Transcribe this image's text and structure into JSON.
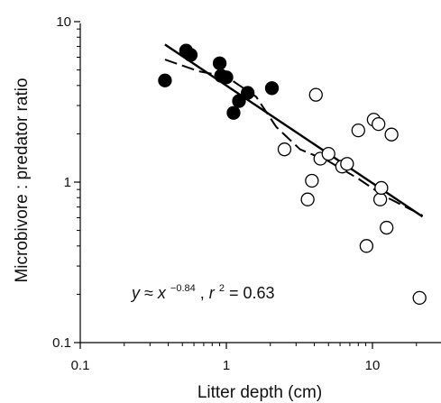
{
  "chart_data": {
    "type": "scatter",
    "xlabel": "Litter depth (cm)",
    "ylabel": "Microbivore : predator ratio",
    "xscale": "log",
    "yscale": "log",
    "xlim": [
      0.1,
      25
    ],
    "ylim": [
      0.1,
      10
    ],
    "xticks": [
      {
        "value": 0.1,
        "label": "0.1"
      },
      {
        "value": 1,
        "label": "1"
      },
      {
        "value": 10,
        "label": "10"
      }
    ],
    "yticks": [
      {
        "value": 0.1,
        "label": "0.1"
      },
      {
        "value": 1,
        "label": "1"
      },
      {
        "value": 10,
        "label": "10"
      }
    ],
    "series": [
      {
        "marker": "filled-circle",
        "color": "#000000",
        "points": [
          [
            0.38,
            4.3
          ],
          [
            0.53,
            6.6
          ],
          [
            0.57,
            6.2
          ],
          [
            0.9,
            5.5
          ],
          [
            0.92,
            4.6
          ],
          [
            1.0,
            4.5
          ],
          [
            1.12,
            2.7
          ],
          [
            1.22,
            3.2
          ],
          [
            1.4,
            3.6
          ],
          [
            2.05,
            3.85
          ]
        ]
      },
      {
        "marker": "open-circle",
        "color": "#000000",
        "points": [
          [
            2.5,
            1.6
          ],
          [
            3.6,
            0.78
          ],
          [
            3.85,
            1.02
          ],
          [
            4.1,
            3.5
          ],
          [
            4.4,
            1.4
          ],
          [
            5.0,
            1.5
          ],
          [
            6.2,
            1.25
          ],
          [
            6.7,
            1.3
          ],
          [
            8.0,
            2.1
          ],
          [
            9.1,
            0.4
          ],
          [
            10.2,
            2.45
          ],
          [
            11.0,
            2.3
          ],
          [
            11.3,
            0.78
          ],
          [
            11.5,
            0.92
          ],
          [
            12.5,
            0.52
          ],
          [
            13.5,
            1.98
          ],
          [
            21.0,
            0.19
          ]
        ]
      }
    ],
    "lines": [
      {
        "style": "solid",
        "points": [
          [
            0.38,
            7.2
          ],
          [
            22.0,
            0.61
          ]
        ]
      },
      {
        "style": "dashed",
        "points": [
          [
            0.38,
            5.8
          ],
          [
            0.65,
            4.9
          ],
          [
            1.0,
            4.55
          ],
          [
            1.6,
            3.4
          ],
          [
            2.2,
            2.2
          ],
          [
            3.2,
            1.6
          ],
          [
            5.0,
            1.35
          ],
          [
            8.0,
            1.05
          ],
          [
            12.0,
            0.82
          ],
          [
            22.0,
            0.62
          ]
        ]
      }
    ],
    "annotation": {
      "y": "y",
      "approx": " ≈ ",
      "x": "x",
      "exponent": "−0.84",
      "comma": ", ",
      "r": "r",
      "r_exp": "2",
      "equals": " = 0.63"
    }
  }
}
